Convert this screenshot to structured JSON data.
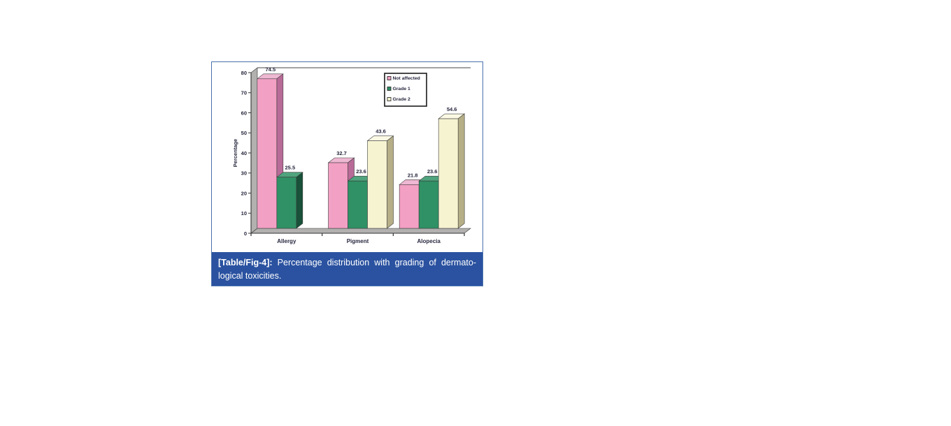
{
  "figure": {
    "caption": {
      "tag": "[Table/Fig-4]:",
      "line1": "Percentage distribution with grading of dermato-",
      "line2": "logical toxicities."
    }
  },
  "colors": {
    "caption_bg": "#2a52a0",
    "figure_border": "#4a71ae",
    "chart_text": "#26263e",
    "axis": "#333333",
    "wall_gray": "#b2b1b0",
    "chart_bg": "#ffffff"
  },
  "chart_data": {
    "type": "bar",
    "effect": "3d",
    "title": "",
    "xlabel": "",
    "ylabel": "Percentage",
    "ylim": [
      0,
      80
    ],
    "ytick_step": 10,
    "grid": false,
    "legend_position": "top-right",
    "value_labels": true,
    "categories": [
      "Allergy",
      "Pigment",
      "Alopecia"
    ],
    "series": [
      {
        "name": "Not affected",
        "values": [
          74.5,
          32.7,
          21.8
        ],
        "color_face": "#f2a0c3",
        "color_top": "#eeb7d2",
        "color_side": "#b96b98"
      },
      {
        "name": "Grade 1",
        "values": [
          25.5,
          23.6,
          23.6
        ],
        "color_face": "#2f9165",
        "color_top": "#4fa37d",
        "color_side": "#19513a"
      },
      {
        "name": "Grade 2",
        "values": [
          null,
          43.6,
          54.6
        ],
        "color_face": "#f6f3d1",
        "color_top": "#fbf9e4",
        "color_side": "#b5ae86"
      }
    ]
  }
}
